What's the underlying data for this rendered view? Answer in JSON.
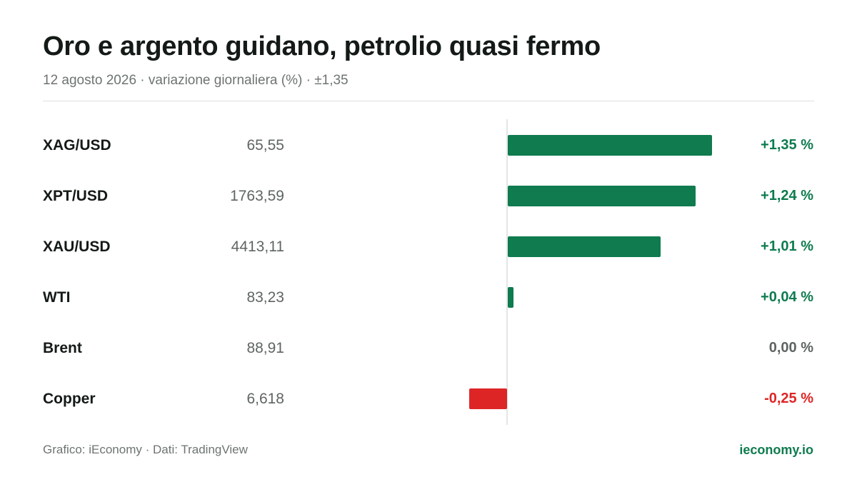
{
  "colors": {
    "positive": "#0f7b4f",
    "negative": "#dd2526",
    "neutral": "#5e6561"
  },
  "chart_data": {
    "type": "bar",
    "orientation": "horizontal",
    "title": "Oro e argento guidano, petrolio quasi fermo",
    "subtitle": "12 agosto 2026 · variazione giornaliera (%) · ±1,35",
    "xlim": [
      -1.35,
      1.35
    ],
    "grid": false,
    "categories": [
      "XAG/USD",
      "XPT/USD",
      "XAU/USD",
      "WTI",
      "Brent",
      "Copper"
    ],
    "prices": [
      "65,55",
      "1763,59",
      "4413,11",
      "83,23",
      "88,91",
      "6,618"
    ],
    "values": [
      1.35,
      1.24,
      1.01,
      0.04,
      0.0,
      -0.25
    ],
    "value_labels": [
      "+1,35 %",
      "+1,24 %",
      "+1,01 %",
      "+0,04 %",
      "0,00 %",
      "-0,25 %"
    ]
  },
  "footer": {
    "source": "Grafico: iEconomy · Dati: TradingView",
    "brand": "ieconomy.io"
  }
}
